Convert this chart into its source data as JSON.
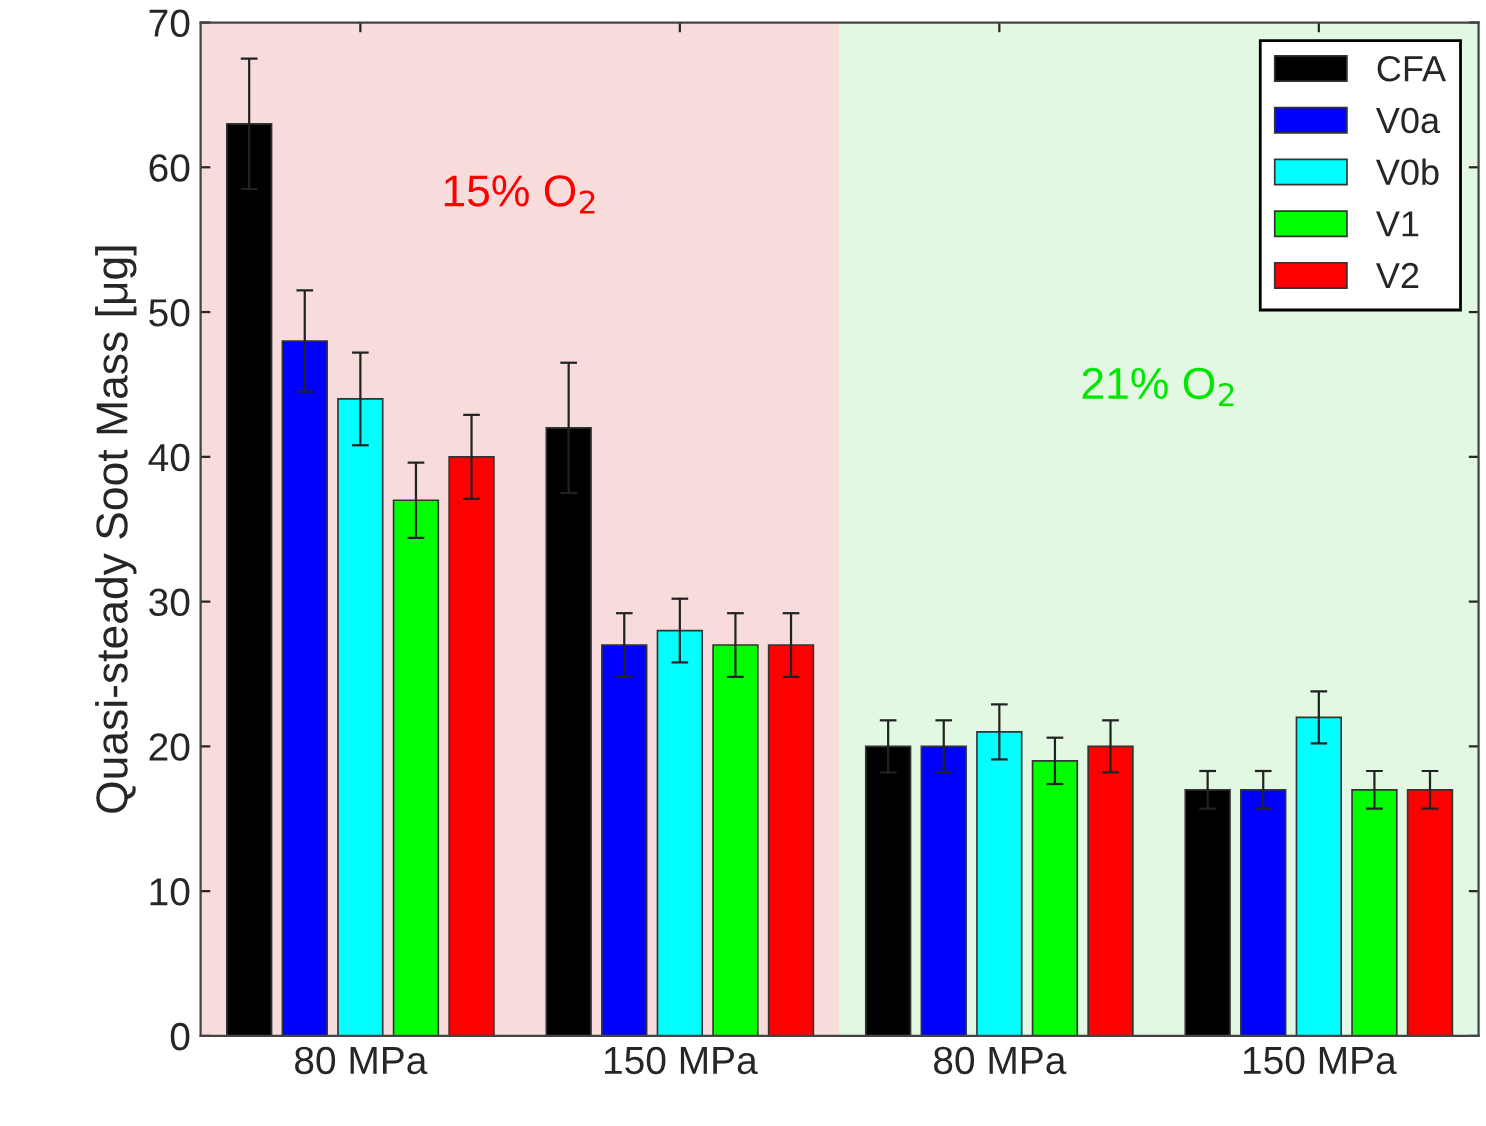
{
  "chart_data": {
    "type": "bar",
    "ylabel": "Quasi-steady Soot Mass [μg]",
    "categories": [
      "80 MPa",
      "150 MPa",
      "80 MPa",
      "150 MPa"
    ],
    "series": [
      {
        "name": "CFA",
        "color": "#000000",
        "values": [
          63,
          42,
          20,
          17
        ],
        "errors": [
          4.5,
          4.5,
          1.8,
          1.3
        ]
      },
      {
        "name": "V0a",
        "color": "#0000ff",
        "values": [
          48,
          27,
          20,
          17
        ],
        "errors": [
          3.5,
          2.2,
          1.8,
          1.3
        ]
      },
      {
        "name": "V0b",
        "color": "#00ffff",
        "values": [
          44,
          28,
          21,
          22
        ],
        "errors": [
          3.2,
          2.2,
          1.9,
          1.8
        ]
      },
      {
        "name": "V1",
        "color": "#00ff00",
        "values": [
          37,
          27,
          19,
          17
        ],
        "errors": [
          2.6,
          2.2,
          1.6,
          1.3
        ]
      },
      {
        "name": "V2",
        "color": "#ff0000",
        "values": [
          40,
          27,
          20,
          17
        ],
        "errors": [
          2.9,
          2.2,
          1.8,
          1.3
        ]
      }
    ],
    "annotations": [
      "15% O$_{2}$",
      "21% O$_{2}$"
    ],
    "ylim": [
      0,
      70
    ],
    "yticks": [
      0,
      10,
      20,
      30,
      40,
      50,
      60,
      70
    ],
    "grid": false,
    "legend": "top right"
  }
}
